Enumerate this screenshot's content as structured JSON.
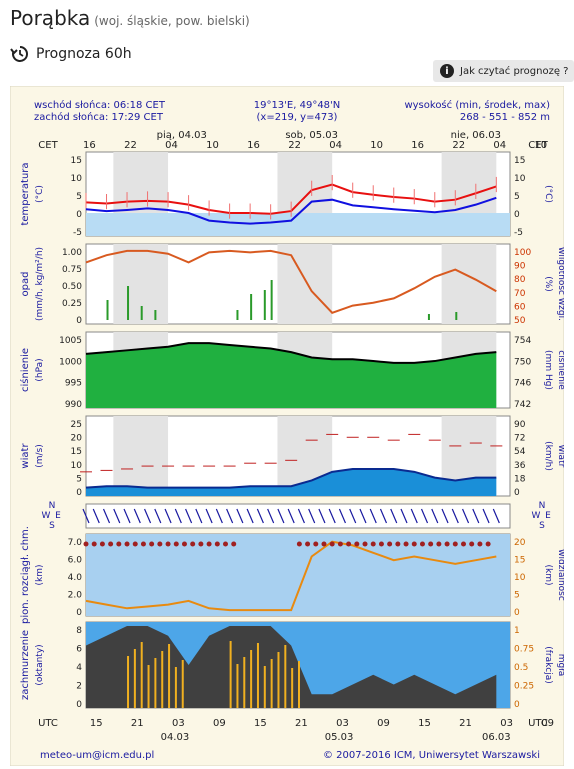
{
  "page": {
    "title": "Porąbka",
    "subtitle": "(woj. śląskie, pow. bielski)",
    "forecast_label": "Prognoza 60h",
    "help_button": "Jak czytać prognozę ?"
  },
  "meteogram": {
    "sunrise": "wschód słońca: 06:18 CET",
    "sunset": "zachód słońca: 17:29 CET",
    "coords": "19°13'E, 49°48'N",
    "grid": "(x=219, y=473)",
    "alt_label": "wysokość (min, środek, max)",
    "alt_value": "268 - 551 - 852 m",
    "cet": "CET",
    "utc": "UTC",
    "top_days": [
      "pią, 04.03",
      "sob, 05.03",
      "nie, 06.03"
    ],
    "top_hours": [
      "16",
      "22",
      "04",
      "10",
      "16",
      "22",
      "04",
      "10",
      "16",
      "22",
      "04",
      "10"
    ],
    "bottom_hours": [
      "15",
      "21",
      "03",
      "09",
      "15",
      "21",
      "03",
      "09",
      "15",
      "21",
      "03",
      "09"
    ],
    "bottom_days": [
      "04.03",
      "05.03",
      "06.03"
    ],
    "footer_left": "meteo-um@icm.edu.pl",
    "footer_right": "© 2007-2016 ICM, Uniwersytet Warszawski",
    "panels": {
      "temp": {
        "left": "temperatura",
        "left2": "(°C)",
        "right": "(°C)",
        "ticks": [
          "15",
          "10",
          "5",
          "0",
          "-5"
        ]
      },
      "precip": {
        "left": "opad",
        "left2": "(mm/h, kg/m²/h)",
        "right": "(%)",
        "right2": "wilgotność wzgl.",
        "ticks_left": [
          "1.00",
          "0.75",
          "0.50",
          "0.25",
          "0"
        ],
        "ticks_right": [
          "100",
          "90",
          "80",
          "70",
          "60",
          "50"
        ]
      },
      "pressure": {
        "left": "ciśnienie",
        "left2": "(hPa)",
        "right": "(mm Hg)",
        "right2": "ciśnienie",
        "ticks_left": [
          "1005",
          "1000",
          "995",
          "990"
        ],
        "ticks_right": [
          "754",
          "750",
          "746",
          "742"
        ]
      },
      "wind": {
        "left": "wiatr",
        "left2": "(m/s)",
        "right": "(km/h)",
        "right2": "wiatr",
        "ticks_left": [
          "25",
          "20",
          "15",
          "10",
          "5",
          "0"
        ],
        "ticks_right": [
          "90",
          "72",
          "54",
          "36",
          "18",
          "0"
        ]
      },
      "winddir": {
        "compass": [
          "N",
          "W",
          "E",
          "S"
        ]
      },
      "cloudbase": {
        "left": "pion. rozciągł. chm.",
        "left2": "(km)",
        "right": "(km)",
        "right2": "widzialność",
        "ticks_left": [
          "7.0",
          "6.0",
          "4.0",
          "2.0",
          "0"
        ],
        "ticks_right": [
          "20",
          "15",
          "10",
          "5",
          "0"
        ]
      },
      "clouds": {
        "left": "zachmurzenie",
        "left2": "(oktanty)",
        "right": "(frakcja)",
        "right2": "mgła",
        "ticks_left": [
          "8",
          "6",
          "4",
          "2",
          "0"
        ],
        "ticks_right": [
          "1",
          "0.75",
          "0.5",
          "0.25",
          "0"
        ]
      }
    }
  },
  "chart_data": [
    {
      "type": "line",
      "name": "temperature",
      "unit": "°C",
      "ylim": [
        -5,
        15
      ],
      "x_hours": [
        0,
        3,
        6,
        9,
        12,
        15,
        18,
        21,
        24,
        27,
        30,
        33,
        36,
        39,
        42,
        45,
        48,
        51,
        54,
        57,
        60
      ],
      "series": [
        {
          "values": [
            2.8,
            2.5,
            3.0,
            3.2,
            3.0,
            2.2,
            0.8,
            0.0,
            0.0,
            -0.2,
            0.5,
            6.0,
            7.5,
            5.5,
            4.8,
            4.2,
            3.8,
            3.0,
            3.5,
            5.2,
            7.0
          ]
        },
        {
          "values": [
            1.0,
            0.5,
            0.8,
            1.2,
            0.8,
            0.0,
            -2.0,
            -2.5,
            -2.8,
            -2.5,
            -2.0,
            3.0,
            3.5,
            2.0,
            1.5,
            1.0,
            0.6,
            0.2,
            0.8,
            2.2,
            4.0
          ]
        }
      ]
    },
    {
      "type": "line",
      "name": "relative_humidity",
      "unit": "%",
      "ylim": [
        50,
        100
      ],
      "x_hours": [
        0,
        3,
        6,
        9,
        12,
        15,
        18,
        21,
        24,
        27,
        30,
        33,
        36,
        39,
        42,
        45,
        48,
        51,
        54,
        57,
        60
      ],
      "values": [
        90,
        95,
        98,
        98,
        96,
        90,
        97,
        98,
        97,
        98,
        95,
        70,
        55,
        60,
        62,
        65,
        72,
        80,
        85,
        78,
        70
      ]
    },
    {
      "type": "area",
      "name": "pressure",
      "unit": "hPa",
      "ylim": [
        990,
        1007
      ],
      "x_hours": [
        0,
        3,
        6,
        9,
        12,
        15,
        18,
        21,
        24,
        27,
        30,
        33,
        36,
        39,
        42,
        45,
        48,
        51,
        54,
        57,
        60
      ],
      "values": [
        1002,
        1002.5,
        1003,
        1003.5,
        1004,
        1005,
        1005,
        1004.5,
        1004,
        1003.5,
        1002.5,
        1001,
        1000.5,
        1000.5,
        1000,
        999.5,
        999.5,
        1000,
        1001,
        1002,
        1002.5
      ]
    },
    {
      "type": "area",
      "name": "wind_speed",
      "unit": "m/s",
      "ylim": [
        0,
        25
      ],
      "x_hours": [
        0,
        3,
        6,
        9,
        12,
        15,
        18,
        21,
        24,
        27,
        30,
        33,
        36,
        39,
        42,
        45,
        48,
        51,
        54,
        57,
        60
      ],
      "series": [
        {
          "values": [
            1.5,
            2,
            2,
            1.5,
            1.5,
            1.5,
            1.5,
            1.5,
            2,
            2,
            2,
            4,
            7,
            8,
            8,
            8,
            7,
            5,
            4,
            5,
            5
          ]
        },
        {
          "values": [
            7,
            7.5,
            8,
            9,
            9,
            9,
            9,
            9,
            10,
            10,
            11,
            18,
            20,
            19,
            19,
            18,
            20,
            18,
            16,
            17,
            16
          ]
        }
      ]
    },
    {
      "type": "line",
      "name": "visibility",
      "unit": "km",
      "ylim": [
        0,
        20
      ],
      "x_hours": [
        0,
        3,
        6,
        9,
        12,
        15,
        18,
        21,
        24,
        27,
        30,
        33,
        36,
        39,
        42,
        45,
        48,
        51,
        54,
        57,
        60
      ],
      "values": [
        3,
        2,
        1,
        1.5,
        2,
        3,
        1,
        0.5,
        0.5,
        0.5,
        0.5,
        15,
        19,
        18,
        16,
        14,
        15,
        14,
        13,
        14,
        15
      ]
    },
    {
      "type": "bar",
      "name": "cloud_cover",
      "unit": "oktanty",
      "ylim": [
        0,
        8
      ],
      "x_hours": [
        0,
        3,
        6,
        9,
        12,
        15,
        18,
        21,
        24,
        27,
        30,
        33,
        36,
        39,
        42,
        45,
        48,
        51,
        54,
        57,
        60
      ],
      "values": [
        6,
        7,
        8,
        8,
        7,
        4,
        7,
        8,
        8,
        8,
        6,
        1,
        1,
        2,
        3,
        2,
        3,
        2,
        1,
        2,
        3
      ]
    }
  ]
}
